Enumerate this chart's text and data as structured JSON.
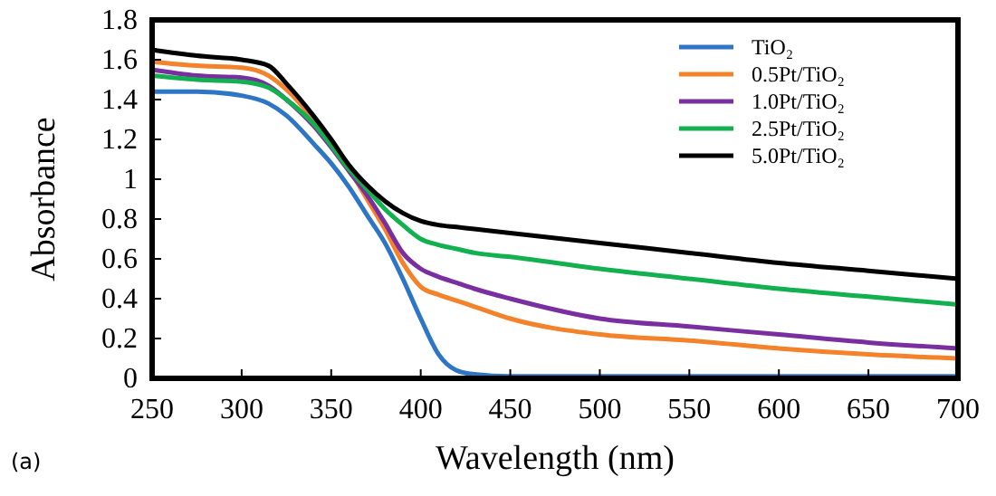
{
  "chart_data": {
    "type": "line",
    "xlabel": "Wavelength (nm)",
    "ylabel": "Absorbance",
    "annotations": [
      "(a)"
    ],
    "x": [
      250,
      275,
      300,
      315,
      325,
      340,
      350,
      360,
      370,
      380,
      390,
      400,
      410,
      420,
      430,
      450,
      500,
      550,
      600,
      650,
      700
    ],
    "xlim": [
      250,
      700
    ],
    "xticks": [
      250,
      300,
      350,
      400,
      450,
      500,
      550,
      600,
      650,
      700
    ],
    "ylim": [
      0,
      1.8
    ],
    "yticks": [
      0,
      0.2,
      0.4,
      0.6,
      0.8,
      1,
      1.2,
      1.4,
      1.6,
      1.8
    ],
    "grid": false,
    "legend": "top right",
    "marker": "none",
    "line_style": "solid",
    "series": [
      {
        "name": "TiO₂",
        "color": "#2e75c6",
        "values": [
          1.44,
          1.44,
          1.42,
          1.38,
          1.32,
          1.18,
          1.08,
          0.96,
          0.82,
          0.68,
          0.5,
          0.3,
          0.12,
          0.04,
          0.02,
          0.01,
          0.01,
          0.01,
          0.01,
          0.01,
          0.01
        ]
      },
      {
        "name": "0.5Pt/TiO₂",
        "color": "#f4822a",
        "values": [
          1.59,
          1.57,
          1.56,
          1.52,
          1.45,
          1.3,
          1.18,
          1.05,
          0.9,
          0.75,
          0.58,
          0.46,
          0.42,
          0.39,
          0.36,
          0.3,
          0.22,
          0.19,
          0.15,
          0.12,
          0.1
        ]
      },
      {
        "name": "1.0Pt/TiO₂",
        "color": "#7a2fa0",
        "values": [
          1.55,
          1.52,
          1.51,
          1.47,
          1.4,
          1.27,
          1.16,
          1.04,
          0.92,
          0.78,
          0.63,
          0.55,
          0.51,
          0.48,
          0.45,
          0.4,
          0.3,
          0.26,
          0.22,
          0.18,
          0.15
        ]
      },
      {
        "name": "2.5Pt/TiO₂",
        "color": "#12b04f",
        "values": [
          1.52,
          1.5,
          1.49,
          1.46,
          1.4,
          1.28,
          1.17,
          1.05,
          0.95,
          0.85,
          0.77,
          0.7,
          0.67,
          0.65,
          0.63,
          0.61,
          0.55,
          0.5,
          0.45,
          0.41,
          0.37
        ]
      },
      {
        "name": "5.0Pt/TiO₂",
        "color": "#000000",
        "values": [
          1.65,
          1.62,
          1.6,
          1.57,
          1.48,
          1.32,
          1.2,
          1.07,
          0.97,
          0.89,
          0.83,
          0.79,
          0.77,
          0.76,
          0.75,
          0.73,
          0.68,
          0.63,
          0.58,
          0.54,
          0.5
        ]
      }
    ]
  }
}
